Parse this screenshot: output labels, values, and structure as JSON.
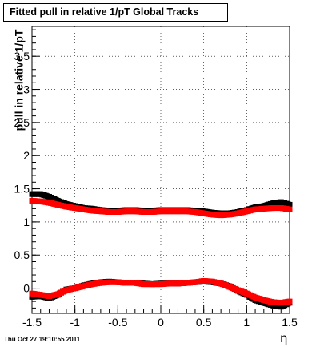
{
  "chart_data": {
    "type": "scatter",
    "title": "Fitted pull in relative 1/pT  Global Tracks",
    "xlabel": "η",
    "ylabel": "pull in relative 1/pT",
    "xlim": [
      -1.5,
      1.5
    ],
    "ylim": [
      -0.38,
      3.95
    ],
    "xticks": [
      "-1.5",
      "-1",
      "-0.5",
      "0",
      "0.5",
      "1",
      "1.5"
    ],
    "yticks": [
      "0",
      "0.5",
      "1",
      "1.5",
      "2",
      "2.5",
      "3",
      "3.5"
    ],
    "grid": true,
    "footer": "Thu Oct 27 19:10:55 2011",
    "colors": {
      "series_a": "#000000",
      "series_b": "#ff0000"
    },
    "series": [
      {
        "role": "upper-black",
        "x": [
          -1.5,
          -1.4,
          -1.3,
          -1.2,
          -1.1,
          -1.0,
          -0.9,
          -0.8,
          -0.7,
          -0.6,
          -0.5,
          -0.4,
          -0.3,
          -0.2,
          -0.1,
          0.0,
          0.1,
          0.2,
          0.3,
          0.4,
          0.5,
          0.6,
          0.7,
          0.8,
          0.9,
          1.0,
          1.1,
          1.2,
          1.3,
          1.4,
          1.5
        ],
        "y": [
          1.42,
          1.42,
          1.38,
          1.32,
          1.27,
          1.24,
          1.21,
          1.2,
          1.18,
          1.17,
          1.17,
          1.18,
          1.18,
          1.17,
          1.17,
          1.18,
          1.18,
          1.18,
          1.18,
          1.17,
          1.16,
          1.14,
          1.13,
          1.13,
          1.15,
          1.18,
          1.22,
          1.24,
          1.28,
          1.3,
          1.26
        ]
      },
      {
        "role": "upper-red",
        "x": [
          -1.5,
          -1.4,
          -1.3,
          -1.2,
          -1.1,
          -1.0,
          -0.9,
          -0.8,
          -0.7,
          -0.6,
          -0.5,
          -0.4,
          -0.3,
          -0.2,
          -0.1,
          0.0,
          0.1,
          0.2,
          0.3,
          0.4,
          0.5,
          0.6,
          0.7,
          0.8,
          0.9,
          1.0,
          1.1,
          1.2,
          1.3,
          1.4,
          1.5
        ],
        "y": [
          1.32,
          1.31,
          1.29,
          1.26,
          1.23,
          1.21,
          1.19,
          1.17,
          1.16,
          1.15,
          1.15,
          1.16,
          1.16,
          1.15,
          1.15,
          1.16,
          1.16,
          1.16,
          1.16,
          1.15,
          1.13,
          1.11,
          1.1,
          1.11,
          1.13,
          1.16,
          1.19,
          1.2,
          1.21,
          1.21,
          1.19
        ]
      },
      {
        "role": "lower-black",
        "x": [
          -1.5,
          -1.4,
          -1.3,
          -1.2,
          -1.1,
          -1.0,
          -0.9,
          -0.8,
          -0.7,
          -0.6,
          -0.5,
          -0.4,
          -0.3,
          -0.2,
          -0.1,
          0.0,
          0.1,
          0.2,
          0.3,
          0.4,
          0.5,
          0.6,
          0.7,
          0.8,
          0.9,
          1.0,
          1.1,
          1.2,
          1.3,
          1.4,
          1.5
        ],
        "y": [
          -0.13,
          -0.12,
          -0.15,
          -0.1,
          -0.02,
          0.0,
          0.04,
          0.07,
          0.09,
          0.1,
          0.09,
          0.08,
          0.08,
          0.07,
          0.06,
          0.07,
          0.07,
          0.07,
          0.08,
          0.09,
          0.1,
          0.09,
          0.07,
          0.03,
          -0.04,
          -0.1,
          -0.18,
          -0.22,
          -0.26,
          -0.28,
          -0.22
        ]
      },
      {
        "role": "lower-red",
        "x": [
          -1.5,
          -1.4,
          -1.3,
          -1.2,
          -1.1,
          -1.0,
          -0.9,
          -0.8,
          -0.7,
          -0.6,
          -0.5,
          -0.4,
          -0.3,
          -0.2,
          -0.1,
          0.0,
          0.1,
          0.2,
          0.3,
          0.4,
          0.5,
          0.6,
          0.7,
          0.8,
          0.9,
          1.0,
          1.1,
          1.2,
          1.3,
          1.4,
          1.5
        ],
        "y": [
          -0.08,
          -0.1,
          -0.12,
          -0.09,
          -0.03,
          0.0,
          0.03,
          0.06,
          0.08,
          0.09,
          0.09,
          0.08,
          0.08,
          0.06,
          0.06,
          0.06,
          0.07,
          0.07,
          0.08,
          0.09,
          0.11,
          0.1,
          0.07,
          0.02,
          -0.03,
          -0.08,
          -0.14,
          -0.18,
          -0.21,
          -0.22,
          -0.2
        ]
      }
    ]
  }
}
